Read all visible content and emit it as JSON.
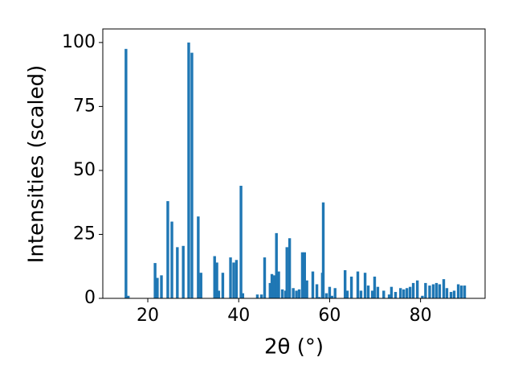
{
  "chart_data": {
    "type": "bar",
    "xlabel": "2θ (°)",
    "ylabel": "Intensities (scaled)",
    "color": "#1f77b4",
    "x": [
      15.2,
      15.7,
      21.6,
      22.1,
      23.0,
      24.4,
      25.3,
      26.5,
      27.8,
      29.0,
      29.7,
      31.1,
      31.7,
      34.7,
      35.2,
      35.6,
      36.5,
      38.2,
      38.9,
      39.5,
      40.5,
      40.9,
      44.1,
      45.0,
      45.7,
      46.9,
      47.3,
      47.8,
      48.3,
      48.8,
      49.6,
      50.3,
      50.6,
      51.2,
      52.0,
      52.7,
      53.3,
      54.0,
      54.5,
      55.0,
      56.3,
      57.2,
      57.7,
      58.4,
      58.6,
      59.3,
      60.0,
      60.5,
      61.2,
      63.4,
      63.9,
      64.8,
      66.2,
      66.9,
      67.8,
      68.5,
      69.4,
      69.9,
      70.6,
      71.9,
      73.1,
      73.6,
      74.5,
      75.6,
      76.3,
      77.0,
      77.7,
      78.4,
      79.3,
      80.4,
      81.1,
      82.0,
      82.8,
      83.5,
      84.2,
      85.1,
      85.8,
      86.7,
      87.4,
      88.3,
      89.0,
      89.7
    ],
    "values": [
      97.5,
      1,
      13.8,
      8,
      9,
      38,
      30,
      20,
      20.5,
      100,
      96,
      32,
      10,
      16.5,
      14,
      3,
      10,
      16,
      14,
      15,
      44,
      2,
      1.5,
      1.5,
      16,
      6,
      9.5,
      9,
      25.5,
      10.5,
      3.5,
      3,
      20,
      23.5,
      4,
      3,
      3.5,
      18,
      18,
      7,
      10.5,
      5.5,
      0.5,
      10,
      37.5,
      2,
      4.5,
      1,
      4,
      11,
      3,
      8.5,
      10.5,
      3,
      10,
      5,
      3,
      8.5,
      4.5,
      3,
      1.5,
      4.5,
      2.5,
      4,
      3.5,
      4,
      4.5,
      6,
      7,
      1,
      6,
      5,
      5.5,
      6,
      5.5,
      7.5,
      4,
      2.5,
      3,
      5.5,
      5,
      5
    ],
    "xlim": [
      10.1,
      94.2
    ],
    "ylim": [
      0,
      105.3
    ],
    "xticks": [
      20,
      40,
      60,
      80
    ],
    "yticks": [
      0,
      25,
      50,
      75,
      100
    ]
  }
}
